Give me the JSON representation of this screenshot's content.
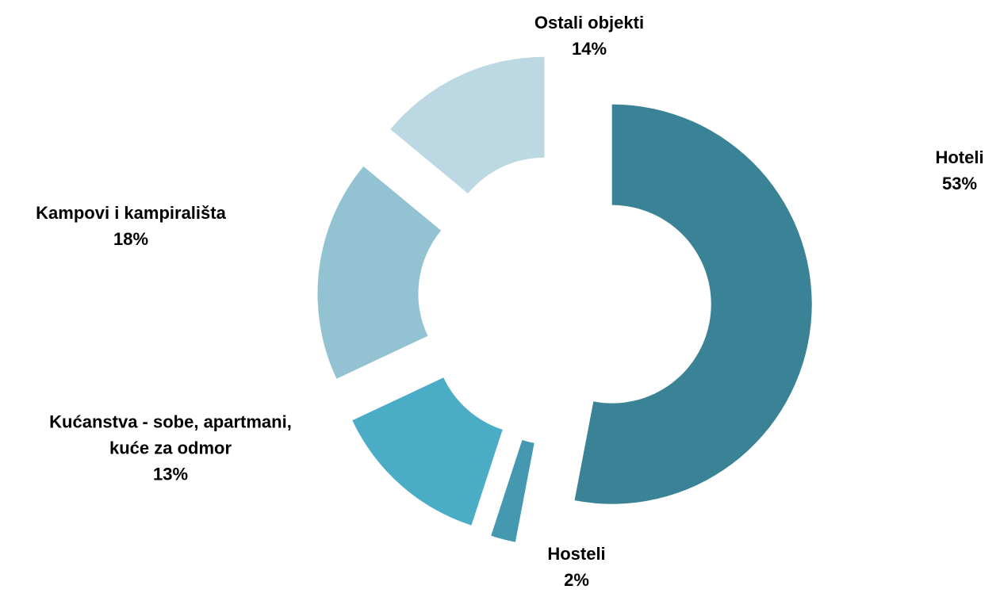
{
  "chart_data": {
    "type": "donut",
    "categories": [
      "Hoteli",
      "Hosteli",
      "Kućanstva - sobe, apartmani, kuće za odmor",
      "Kampovi i kampirališta",
      "Ostali objekti"
    ],
    "values": [
      53,
      2,
      13,
      18,
      14
    ],
    "value_labels": [
      "53%",
      "2%",
      "13%",
      "18%",
      "14%"
    ],
    "colors": [
      "#3a8295",
      "#4499b0",
      "#4bacc6",
      "#93c3d3",
      "#bcd9e3"
    ]
  }
}
